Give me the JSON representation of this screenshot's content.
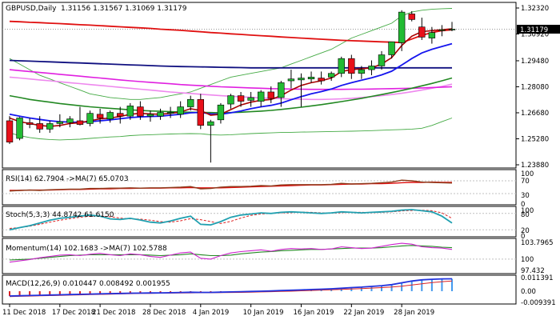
{
  "header": {
    "symbol_title": "GBPUSD,Daily",
    "ohlc": "1.31156 1.31567 1.31069 1.31179"
  },
  "colors": {
    "bull": "#22bb33",
    "bear": "#e8101a",
    "ma_red": "#e01010",
    "ma_navy": "#101080",
    "ma_magenta": "#e020e0",
    "ma_pink": "#ee88ee",
    "ma_green": "#228822",
    "ma_blue": "#1515ee",
    "ma_darkred": "#aa0000",
    "band_green": "#44aa44",
    "osc_teal": "#20a0b0",
    "osc_brown": "#8b3a1a",
    "osc_magenta": "#cc22cc",
    "macd_blue": "#2233dd",
    "macd_red": "#dd2222",
    "grid": "#c0c0c0",
    "price_tag_bg": "#000000"
  },
  "price_axis": {
    "labels": [
      "1.32320",
      "1.30920",
      "1.29480",
      "1.28080",
      "1.26680",
      "1.25280",
      "1.23880"
    ],
    "current_price": "1.31179"
  },
  "date_axis": {
    "labels": [
      "11 Dec 2018",
      "17 Dec 2018",
      "21 Dec 2018",
      "28 Dec 2018",
      "4 Jan 2019",
      "10 Jan 2019",
      "16 Jan 2019",
      "22 Jan 2019",
      "28 Jan 2019"
    ]
  },
  "rsi": {
    "label": "RSI(14) 62.7904  ->MA(7) 65.0703",
    "levels": [
      "70",
      "30"
    ],
    "top_label": "100",
    "bottom_label": "0"
  },
  "stoch": {
    "label": "Stoch(5,3,3) 44.8742 61.6150",
    "levels": [
      "80",
      "20"
    ],
    "top_label": "100",
    "bottom_label": "0"
  },
  "momentum": {
    "label": "Momentum(14) 102.1683  ->MA(7) 102.5788",
    "levels": [
      "103.7965",
      "100",
      "97.432"
    ]
  },
  "macd": {
    "label": "MACD(12,26,9) 0.010447 0.008492 0.001955",
    "levels": [
      "0.011391",
      "0.00",
      "-0.009391"
    ]
  },
  "chart_data": {
    "type": "candlestick",
    "title": "GBPUSD,Daily",
    "ylim": [
      1.2388,
      1.3232
    ],
    "candles": [
      {
        "o": 1.2625,
        "h": 1.265,
        "l": 1.25,
        "c": 1.251
      },
      {
        "o": 1.253,
        "h": 1.2645,
        "l": 1.252,
        "c": 1.264
      },
      {
        "o": 1.2615,
        "h": 1.264,
        "l": 1.2585,
        "c": 1.2605
      },
      {
        "o": 1.261,
        "h": 1.265,
        "l": 1.256,
        "c": 1.258
      },
      {
        "o": 1.258,
        "h": 1.2625,
        "l": 1.256,
        "c": 1.261
      },
      {
        "o": 1.261,
        "h": 1.266,
        "l": 1.259,
        "c": 1.262
      },
      {
        "o": 1.2615,
        "h": 1.265,
        "l": 1.259,
        "c": 1.2635
      },
      {
        "o": 1.2625,
        "h": 1.27,
        "l": 1.26,
        "c": 1.2605
      },
      {
        "o": 1.261,
        "h": 1.268,
        "l": 1.2595,
        "c": 1.2665
      },
      {
        "o": 1.266,
        "h": 1.269,
        "l": 1.261,
        "c": 1.264
      },
      {
        "o": 1.2635,
        "h": 1.268,
        "l": 1.2615,
        "c": 1.267
      },
      {
        "o": 1.2665,
        "h": 1.27,
        "l": 1.261,
        "c": 1.265
      },
      {
        "o": 1.265,
        "h": 1.272,
        "l": 1.263,
        "c": 1.2705
      },
      {
        "o": 1.27,
        "h": 1.273,
        "l": 1.263,
        "c": 1.265
      },
      {
        "o": 1.265,
        "h": 1.268,
        "l": 1.262,
        "c": 1.266
      },
      {
        "o": 1.265,
        "h": 1.269,
        "l": 1.263,
        "c": 1.267
      },
      {
        "o": 1.2665,
        "h": 1.27,
        "l": 1.264,
        "c": 1.267
      },
      {
        "o": 1.266,
        "h": 1.273,
        "l": 1.264,
        "c": 1.27
      },
      {
        "o": 1.27,
        "h": 1.276,
        "l": 1.268,
        "c": 1.274
      },
      {
        "o": 1.274,
        "h": 1.277,
        "l": 1.258,
        "c": 1.26
      },
      {
        "o": 1.26,
        "h": 1.263,
        "l": 1.24,
        "c": 1.262
      },
      {
        "o": 1.263,
        "h": 1.272,
        "l": 1.261,
        "c": 1.271
      },
      {
        "o": 1.2715,
        "h": 1.277,
        "l": 1.269,
        "c": 1.276
      },
      {
        "o": 1.276,
        "h": 1.278,
        "l": 1.27,
        "c": 1.273
      },
      {
        "o": 1.2735,
        "h": 1.278,
        "l": 1.27,
        "c": 1.275
      },
      {
        "o": 1.273,
        "h": 1.279,
        "l": 1.27,
        "c": 1.278
      },
      {
        "o": 1.278,
        "h": 1.281,
        "l": 1.272,
        "c": 1.2745
      },
      {
        "o": 1.275,
        "h": 1.284,
        "l": 1.27,
        "c": 1.283
      },
      {
        "o": 1.284,
        "h": 1.29,
        "l": 1.28,
        "c": 1.285
      },
      {
        "o": 1.2845,
        "h": 1.288,
        "l": 1.27,
        "c": 1.2855
      },
      {
        "o": 1.285,
        "h": 1.289,
        "l": 1.283,
        "c": 1.286
      },
      {
        "o": 1.2855,
        "h": 1.289,
        "l": 1.282,
        "c": 1.284
      },
      {
        "o": 1.286,
        "h": 1.289,
        "l": 1.284,
        "c": 1.288
      },
      {
        "o": 1.288,
        "h": 1.297,
        "l": 1.286,
        "c": 1.296
      },
      {
        "o": 1.296,
        "h": 1.298,
        "l": 1.285,
        "c": 1.288
      },
      {
        "o": 1.288,
        "h": 1.292,
        "l": 1.285,
        "c": 1.29
      },
      {
        "o": 1.29,
        "h": 1.295,
        "l": 1.287,
        "c": 1.292
      },
      {
        "o": 1.292,
        "h": 1.3,
        "l": 1.29,
        "c": 1.298
      },
      {
        "o": 1.298,
        "h": 1.305,
        "l": 1.296,
        "c": 1.305
      },
      {
        "o": 1.3045,
        "h": 1.322,
        "l": 1.3,
        "c": 1.321
      },
      {
        "o": 1.32,
        "h": 1.3215,
        "l": 1.316,
        "c": 1.317
      },
      {
        "o": 1.313,
        "h": 1.318,
        "l": 1.306,
        "c": 1.3075
      },
      {
        "o": 1.307,
        "h": 1.313,
        "l": 1.304,
        "c": 1.31
      },
      {
        "o": 1.311,
        "h": 1.314,
        "l": 1.308,
        "c": 1.3115
      },
      {
        "o": 1.3115,
        "h": 1.3157,
        "l": 1.3107,
        "c": 1.3118
      }
    ],
    "overlays": {
      "ma_red": [
        1.316,
        1.3158,
        1.3155,
        1.3153,
        1.315,
        1.3148,
        1.3145,
        1.3142,
        1.314,
        1.3137,
        1.3134,
        1.3131,
        1.3128,
        1.3125,
        1.3122,
        1.3118,
        1.3115,
        1.3112,
        1.3108,
        1.3104,
        1.31,
        1.3097,
        1.3093,
        1.309,
        1.3086,
        1.3083,
        1.308,
        1.3076,
        1.3073,
        1.307,
        1.3067,
        1.3064,
        1.3061,
        1.3058,
        1.3056,
        1.3054,
        1.3052,
        1.305,
        1.3048,
        1.3046,
        1.3065,
        1.3085,
        1.31,
        1.311,
        1.3115
      ],
      "ma_navy": [
        1.295,
        1.2948,
        1.2946,
        1.2944,
        1.2942,
        1.294,
        1.2938,
        1.2936,
        1.2934,
        1.2932,
        1.293,
        1.2928,
        1.2926,
        1.2924,
        1.2922,
        1.292,
        1.2918,
        1.2917,
        1.2916,
        1.2915,
        1.2914,
        1.2913,
        1.2912,
        1.2911,
        1.291,
        1.291,
        1.291,
        1.291,
        1.291,
        1.291,
        1.291,
        1.291,
        1.291,
        1.291,
        1.291,
        1.291,
        1.291,
        1.291,
        1.291,
        1.291,
        1.291,
        1.291,
        1.291,
        1.291,
        1.291
      ],
      "ma_magenta": [
        1.29,
        1.2895,
        1.289,
        1.2885,
        1.288,
        1.2875,
        1.287,
        1.2865,
        1.286,
        1.2855,
        1.285,
        1.2845,
        1.284,
        1.2836,
        1.2832,
        1.2828,
        1.2824,
        1.282,
        1.2817,
        1.2814,
        1.2811,
        1.2808,
        1.2806,
        1.2804,
        1.2802,
        1.28,
        1.2798,
        1.2797,
        1.2796,
        1.2795,
        1.2794,
        1.2794,
        1.2794,
        1.2794,
        1.2795,
        1.2795,
        1.2796,
        1.2797,
        1.2798,
        1.2799,
        1.28,
        1.2802,
        1.2804,
        1.2806,
        1.2808
      ],
      "ma_pink": [
        1.286,
        1.2855,
        1.285,
        1.2845,
        1.284,
        1.2835,
        1.283,
        1.2825,
        1.282,
        1.2815,
        1.281,
        1.2805,
        1.28,
        1.2795,
        1.279,
        1.2785,
        1.278,
        1.2776,
        1.2772,
        1.2768,
        1.2764,
        1.276,
        1.2757,
        1.2754,
        1.2751,
        1.2748,
        1.2746,
        1.2744,
        1.2742,
        1.2741,
        1.274,
        1.274,
        1.2741,
        1.2743,
        1.2746,
        1.275,
        1.2755,
        1.276,
        1.2766,
        1.2773,
        1.2781,
        1.279,
        1.28,
        1.281,
        1.2822
      ],
      "ma_green": [
        1.276,
        1.275,
        1.274,
        1.2732,
        1.2725,
        1.2718,
        1.2712,
        1.2706,
        1.27,
        1.2696,
        1.2692,
        1.2688,
        1.2684,
        1.2681,
        1.2678,
        1.2676,
        1.2674,
        1.2672,
        1.2671,
        1.267,
        1.2669,
        1.2668,
        1.2669,
        1.2671,
        1.2674,
        1.2677,
        1.2681,
        1.2686,
        1.2692,
        1.2698,
        1.2705,
        1.2712,
        1.272,
        1.2728,
        1.2737,
        1.2746,
        1.2756,
        1.2766,
        1.2777,
        1.2788,
        1.28,
        1.2813,
        1.2826,
        1.284,
        1.2855
      ],
      "ma_darkred": [
        1.264,
        1.262,
        1.261,
        1.26,
        1.2595,
        1.26,
        1.261,
        1.2615,
        1.2625,
        1.2635,
        1.264,
        1.2648,
        1.266,
        1.2665,
        1.2662,
        1.266,
        1.2665,
        1.2672,
        1.269,
        1.268,
        1.2655,
        1.266,
        1.2685,
        1.271,
        1.2725,
        1.2735,
        1.274,
        1.276,
        1.279,
        1.2815,
        1.283,
        1.284,
        1.2855,
        1.289,
        1.29,
        1.2905,
        1.291,
        1.293,
        1.2965,
        1.303,
        1.308,
        1.3105,
        1.311,
        1.3115,
        1.312
      ],
      "ma_blue": [
        1.266,
        1.265,
        1.264,
        1.2632,
        1.2625,
        1.262,
        1.2618,
        1.2617,
        1.262,
        1.2625,
        1.263,
        1.2636,
        1.2642,
        1.2646,
        1.2648,
        1.265,
        1.2655,
        1.266,
        1.2668,
        1.267,
        1.2662,
        1.266,
        1.2668,
        1.2678,
        1.269,
        1.27,
        1.2708,
        1.272,
        1.2738,
        1.2755,
        1.277,
        1.2782,
        1.2796,
        1.2815,
        1.283,
        1.2843,
        1.2856,
        1.2872,
        1.2892,
        1.2925,
        1.296,
        1.299,
        1.301,
        1.3025,
        1.304
      ],
      "band_upper": [
        1.296,
        1.293,
        1.29,
        1.287,
        1.285,
        1.283,
        1.281,
        1.279,
        1.277,
        1.276,
        1.275,
        1.2745,
        1.274,
        1.274,
        1.2745,
        1.275,
        1.276,
        1.277,
        1.278,
        1.28,
        1.282,
        1.284,
        1.286,
        1.287,
        1.288,
        1.289,
        1.29,
        1.291,
        1.293,
        1.295,
        1.297,
        1.299,
        1.301,
        1.304,
        1.307,
        1.309,
        1.311,
        1.313,
        1.315,
        1.319,
        1.321,
        1.322,
        1.3225,
        1.3228,
        1.323
      ],
      "band_lower": [
        1.256,
        1.2545,
        1.2535,
        1.2528,
        1.2524,
        1.2522,
        1.2524,
        1.2526,
        1.253,
        1.2534,
        1.2538,
        1.254,
        1.2545,
        1.2548,
        1.255,
        1.2552,
        1.2554,
        1.2555,
        1.2556,
        1.2555,
        1.255,
        1.2548,
        1.255,
        1.2553,
        1.2556,
        1.2558,
        1.256,
        1.2562,
        1.2563,
        1.2564,
        1.2565,
        1.2566,
        1.2567,
        1.2568,
        1.2569,
        1.257,
        1.2572,
        1.2574,
        1.2576,
        1.2578,
        1.258,
        1.2585,
        1.26,
        1.262,
        1.264
      ]
    },
    "rsi_values": [
      38,
      40,
      41,
      40,
      42,
      43,
      44,
      44,
      46,
      46,
      47,
      47,
      48,
      47,
      48,
      48,
      49,
      50,
      52,
      45,
      46,
      50,
      52,
      52,
      53,
      55,
      54,
      57,
      58,
      58,
      58,
      58,
      59,
      62,
      60,
      61,
      62,
      64,
      66,
      72,
      70,
      66,
      65,
      64,
      63
    ],
    "rsi_ma": [
      40,
      40,
      41,
      41,
      41,
      42,
      43,
      43,
      44,
      45,
      45,
      46,
      46,
      47,
      47,
      47,
      48,
      48,
      49,
      48,
      48,
      48,
      49,
      50,
      51,
      52,
      53,
      54,
      55,
      56,
      57,
      57,
      58,
      59,
      60,
      60,
      61,
      61,
      62,
      64,
      65,
      65,
      66,
      65,
      65
    ],
    "stoch_k": [
      20,
      28,
      35,
      45,
      55,
      62,
      66,
      70,
      74,
      70,
      60,
      58,
      62,
      56,
      48,
      45,
      52,
      62,
      70,
      40,
      38,
      50,
      66,
      74,
      78,
      82,
      80,
      84,
      86,
      84,
      82,
      80,
      82,
      86,
      84,
      82,
      84,
      86,
      88,
      92,
      94,
      90,
      86,
      70,
      45
    ],
    "stoch_d": [
      25,
      28,
      33,
      40,
      48,
      55,
      61,
      66,
      70,
      71,
      68,
      63,
      60,
      59,
      55,
      50,
      48,
      53,
      61,
      57,
      50,
      43,
      51,
      63,
      73,
      78,
      80,
      82,
      83,
      85,
      84,
      82,
      81,
      83,
      84,
      84,
      83,
      84,
      86,
      89,
      91,
      92,
      90,
      82,
      62
    ],
    "mom_values": [
      99.3,
      99.6,
      99.9,
      100.3,
      100.6,
      100.9,
      101.0,
      100.8,
      101.1,
      101.3,
      101.0,
      100.8,
      101.2,
      101.0,
      100.6,
      100.4,
      100.9,
      101.4,
      101.6,
      100.2,
      100.0,
      100.8,
      101.4,
      101.7,
      101.9,
      102.1,
      101.8,
      102.2,
      102.4,
      102.3,
      102.4,
      102.2,
      102.3,
      102.8,
      102.6,
      102.4,
      102.5,
      102.9,
      103.3,
      103.6,
      103.4,
      102.8,
      102.6,
      102.5,
      102.2
    ],
    "mom_ma": [
      99.8,
      99.9,
      100.0,
      100.2,
      100.4,
      100.6,
      100.8,
      100.9,
      101.0,
      101.0,
      101.0,
      101.0,
      101.0,
      101.0,
      100.9,
      100.8,
      100.9,
      101.0,
      101.2,
      101.0,
      100.8,
      100.8,
      100.9,
      101.2,
      101.4,
      101.6,
      101.7,
      101.9,
      102.0,
      102.1,
      102.2,
      102.2,
      102.3,
      102.4,
      102.5,
      102.5,
      102.5,
      102.6,
      102.8,
      103.0,
      103.1,
      103.0,
      102.9,
      102.7,
      102.6
    ],
    "macd_main": [
      -0.004,
      -0.0038,
      -0.0036,
      -0.0034,
      -0.0032,
      -0.003,
      -0.0028,
      -0.0026,
      -0.0024,
      -0.0022,
      -0.002,
      -0.0019,
      -0.0017,
      -0.0016,
      -0.0015,
      -0.0014,
      -0.0013,
      -0.0011,
      -0.0009,
      -0.001,
      -0.001,
      -0.0008,
      -0.0006,
      -0.0004,
      -0.0002,
      0.0,
      0.0002,
      0.0005,
      0.0008,
      0.0011,
      0.0014,
      0.0017,
      0.002,
      0.0025,
      0.003,
      0.0034,
      0.004,
      0.0046,
      0.0055,
      0.007,
      0.0085,
      0.0095,
      0.01,
      0.0103,
      0.0104
    ],
    "macd_signal": [
      -0.0045,
      -0.0043,
      -0.0041,
      -0.0039,
      -0.0037,
      -0.0035,
      -0.0033,
      -0.0031,
      -0.0029,
      -0.0027,
      -0.0025,
      -0.0023,
      -0.0021,
      -0.0019,
      -0.0018,
      -0.0017,
      -0.0016,
      -0.0015,
      -0.0014,
      -0.0013,
      -0.0013,
      -0.0012,
      -0.0011,
      -0.001,
      -0.0008,
      -0.0006,
      -0.0004,
      -0.0002,
      0.0,
      0.0003,
      0.0006,
      0.0009,
      0.0012,
      0.0015,
      0.0018,
      0.0022,
      0.0026,
      0.003,
      0.0035,
      0.0042,
      0.0052,
      0.0062,
      0.0072,
      0.008,
      0.0085
    ]
  }
}
